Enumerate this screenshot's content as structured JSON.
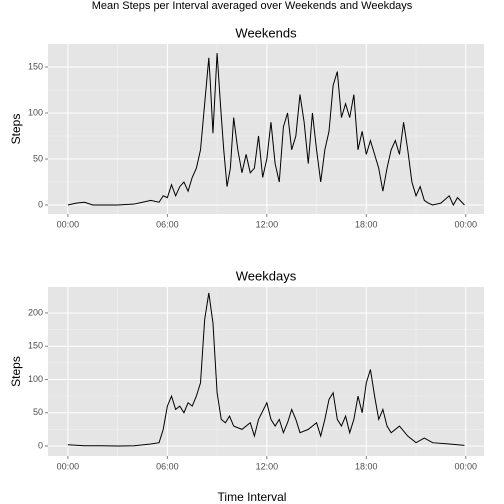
{
  "title": "Mean Steps per Interval averaged over Weekends and Weekdays",
  "xlabel": "Time Interval",
  "chart_data": [
    {
      "type": "line",
      "title": "Weekends",
      "ylabel": "Steps",
      "color": "#000000",
      "grid": true,
      "x": [
        0,
        0.5,
        1,
        1.5,
        2,
        3,
        4,
        4.5,
        5,
        5.5,
        5.75,
        6,
        6.25,
        6.5,
        6.75,
        7,
        7.25,
        7.5,
        7.75,
        8,
        8.25,
        8.5,
        8.6,
        8.75,
        9,
        9.2,
        9.4,
        9.6,
        9.8,
        10,
        10.25,
        10.5,
        10.75,
        11,
        11.25,
        11.5,
        11.75,
        12,
        12.25,
        12.5,
        12.75,
        13,
        13.25,
        13.5,
        13.75,
        14,
        14.25,
        14.5,
        14.75,
        15,
        15.25,
        15.5,
        15.75,
        16,
        16.25,
        16.5,
        16.75,
        17,
        17.25,
        17.5,
        17.75,
        18,
        18.25,
        18.5,
        18.75,
        19,
        19.25,
        19.5,
        19.75,
        20,
        20.25,
        20.5,
        20.75,
        21,
        21.25,
        21.5,
        21.75,
        22,
        22.5,
        23,
        23.25,
        23.5,
        23.92
      ],
      "values": [
        0,
        2,
        3,
        0,
        0,
        0,
        1,
        3,
        5,
        3,
        10,
        8,
        22,
        10,
        20,
        25,
        15,
        30,
        40,
        60,
        110,
        160,
        130,
        78,
        165,
        110,
        60,
        20,
        40,
        95,
        60,
        35,
        55,
        35,
        40,
        75,
        30,
        50,
        90,
        45,
        25,
        85,
        100,
        60,
        75,
        120,
        90,
        45,
        100,
        60,
        25,
        60,
        80,
        130,
        145,
        95,
        110,
        95,
        120,
        60,
        80,
        55,
        70,
        55,
        40,
        15,
        40,
        60,
        70,
        55,
        90,
        60,
        25,
        10,
        20,
        5,
        2,
        0,
        2,
        10,
        0,
        8,
        0
      ],
      "xlim": [
        -1.2,
        25.1
      ],
      "ylim": [
        -9.8,
        175
      ],
      "xticks": [
        {
          "value": 0,
          "label": "00:00"
        },
        {
          "value": 6,
          "label": "06:00"
        },
        {
          "value": 12,
          "label": "12:00"
        },
        {
          "value": 18,
          "label": "18:00"
        },
        {
          "value": 24,
          "label": "00:00"
        }
      ],
      "yticks": [
        0,
        50,
        100,
        150
      ]
    },
    {
      "type": "line",
      "title": "Weekdays",
      "ylabel": "Steps",
      "color": "#000000",
      "grid": true,
      "x": [
        0,
        1,
        2,
        3,
        4,
        5,
        5.5,
        5.75,
        6,
        6.25,
        6.5,
        6.75,
        7,
        7.25,
        7.5,
        7.75,
        8,
        8.25,
        8.5,
        8.75,
        9,
        9.25,
        9.5,
        9.75,
        10,
        10.5,
        11,
        11.25,
        11.5,
        12,
        12.25,
        12.5,
        12.75,
        13,
        13.25,
        13.5,
        13.75,
        14,
        14.5,
        15,
        15.25,
        15.5,
        15.75,
        16,
        16.25,
        16.5,
        16.75,
        17,
        17.25,
        17.5,
        17.75,
        18,
        18.25,
        18.5,
        18.75,
        19,
        19.25,
        19.5,
        20,
        20.5,
        21,
        21.5,
        22,
        23,
        23.92
      ],
      "values": [
        2,
        0.5,
        0.5,
        0,
        0.5,
        3,
        5,
        25,
        60,
        75,
        55,
        60,
        50,
        65,
        60,
        75,
        95,
        190,
        230,
        185,
        80,
        40,
        35,
        45,
        30,
        25,
        35,
        15,
        40,
        65,
        40,
        30,
        40,
        20,
        35,
        55,
        40,
        20,
        25,
        35,
        15,
        40,
        70,
        80,
        40,
        30,
        45,
        20,
        40,
        75,
        50,
        95,
        115,
        75,
        40,
        55,
        30,
        20,
        30,
        15,
        5,
        12,
        5,
        3,
        1
      ],
      "xlim": [
        -1.2,
        25.1
      ],
      "ylim": [
        -15,
        239
      ],
      "xticks": [
        {
          "value": 0,
          "label": "00:00"
        },
        {
          "value": 6,
          "label": "06:00"
        },
        {
          "value": 12,
          "label": "12:00"
        },
        {
          "value": 18,
          "label": "18:00"
        },
        {
          "value": 24,
          "label": "00:00"
        }
      ],
      "yticks": [
        0,
        50,
        100,
        150,
        200
      ]
    }
  ]
}
